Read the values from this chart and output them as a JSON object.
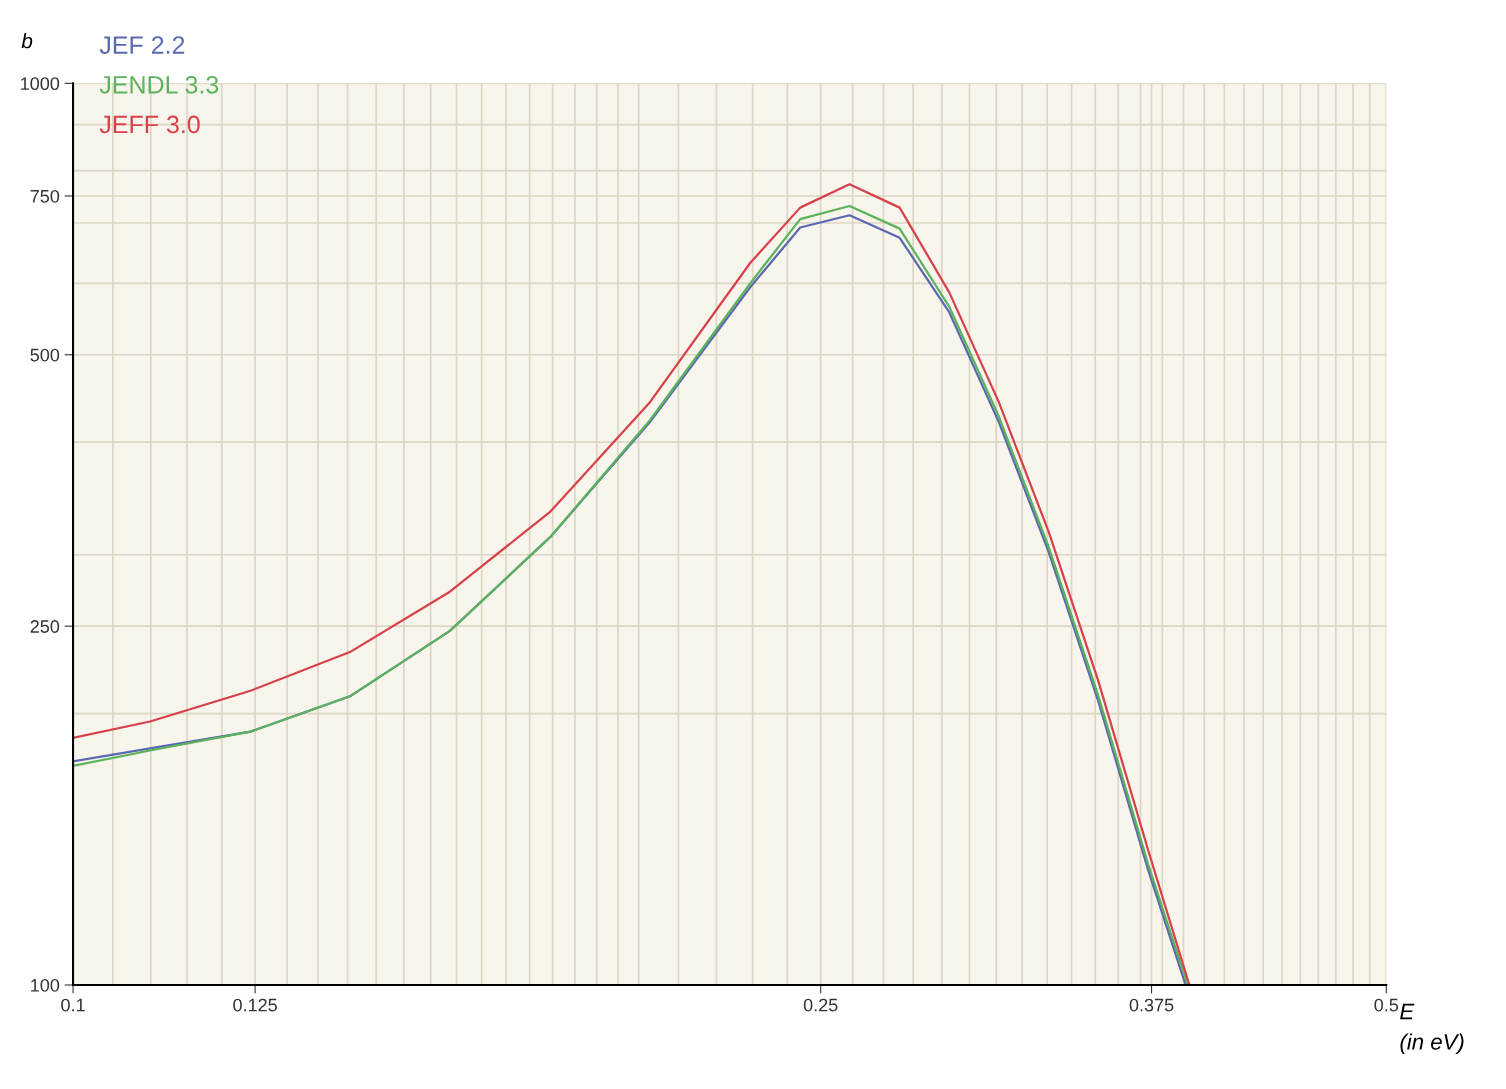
{
  "chart_data": {
    "type": "line",
    "ylabel": "b",
    "xlabel": "E\n(in eV)",
    "log": "xy",
    "grid": true,
    "legend": "top left",
    "line_style": "solid",
    "marker": "none",
    "xlim": [
      0.1,
      0.5
    ],
    "ylim": [
      100,
      1000
    ],
    "xticks": [
      0.1,
      {
        "value": 0.105,
        "label": null
      },
      {
        "value": 0.11,
        "label": null
      },
      {
        "value": 0.115,
        "label": null
      },
      {
        "value": 0.12,
        "label": null
      },
      0.125,
      {
        "value": 0.13,
        "label": null
      },
      {
        "value": 0.135,
        "label": null
      },
      {
        "value": 0.14,
        "label": null
      },
      {
        "value": 0.145,
        "label": null
      },
      {
        "value": 0.15,
        "label": null
      },
      {
        "value": 0.155,
        "label": null
      },
      {
        "value": 0.16,
        "label": null
      },
      {
        "value": 0.165,
        "label": null
      },
      {
        "value": 0.17,
        "label": null
      },
      {
        "value": 0.175,
        "label": null
      },
      {
        "value": 0.18,
        "label": null
      },
      {
        "value": 0.185,
        "label": null
      },
      {
        "value": 0.19,
        "label": null
      },
      {
        "value": 0.195,
        "label": null
      },
      {
        "value": 0.2,
        "label": null
      },
      {
        "value": 0.21,
        "label": null
      },
      {
        "value": 0.22,
        "label": null
      },
      {
        "value": 0.23,
        "label": null
      },
      {
        "value": 0.24,
        "label": null
      },
      0.25,
      {
        "value": 0.26,
        "label": null
      },
      {
        "value": 0.27,
        "label": null
      },
      {
        "value": 0.28,
        "label": null
      },
      {
        "value": 0.29,
        "label": null
      },
      {
        "value": 0.3,
        "label": null
      },
      {
        "value": 0.31,
        "label": null
      },
      {
        "value": 0.32,
        "label": null
      },
      {
        "value": 0.33,
        "label": null
      },
      {
        "value": 0.34,
        "label": null
      },
      {
        "value": 0.35,
        "label": null
      },
      {
        "value": 0.36,
        "label": null
      },
      {
        "value": 0.37,
        "label": null
      },
      0.375,
      {
        "value": 0.38,
        "label": null
      },
      {
        "value": 0.39,
        "label": null
      },
      {
        "value": 0.4,
        "label": null
      },
      {
        "value": 0.41,
        "label": null
      },
      {
        "value": 0.42,
        "label": null
      },
      {
        "value": 0.43,
        "label": null
      },
      {
        "value": 0.44,
        "label": null
      },
      {
        "value": 0.45,
        "label": null
      },
      {
        "value": 0.46,
        "label": null
      },
      {
        "value": 0.47,
        "label": null
      },
      {
        "value": 0.48,
        "label": null
      },
      {
        "value": 0.49,
        "label": null
      },
      0.5
    ],
    "yticks": [
      100,
      {
        "value": 200,
        "label": null
      },
      250,
      {
        "value": 300,
        "label": null
      },
      {
        "value": 400,
        "label": null
      },
      500,
      {
        "value": 600,
        "label": null
      },
      {
        "value": 700,
        "label": null
      },
      750,
      {
        "value": 800,
        "label": null
      },
      {
        "value": 900,
        "label": null
      },
      1000
    ],
    "series": [
      {
        "name": "JEF 2.2",
        "color": "#5a68b0",
        "x": [
          0.1,
          0.1099,
          0.1243,
          0.1404,
          0.1587,
          0.1795,
          0.2028,
          0.2293,
          0.2438,
          0.259,
          0.2754,
          0.2927,
          0.311,
          0.3306,
          0.3514,
          0.3735,
          0.391
        ],
        "values": [
          177,
          183,
          191,
          209,
          247,
          314,
          421,
          594,
          692,
          714,
          674,
          557,
          421,
          302,
          206,
          134,
          100
        ]
      },
      {
        "name": "JENDL 3.3",
        "color": "#5cb35c",
        "x": [
          0.1,
          0.1099,
          0.1243,
          0.1404,
          0.1587,
          0.1795,
          0.2028,
          0.2293,
          0.2438,
          0.259,
          0.2754,
          0.2927,
          0.311,
          0.3306,
          0.3514,
          0.3735,
          0.392
        ],
        "values": [
          175,
          182,
          191,
          209,
          247,
          314,
          423,
          600,
          707,
          731,
          690,
          565,
          427,
          306,
          209,
          136,
          100
        ]
      },
      {
        "name": "JEFF 3.0",
        "color": "#d8404a",
        "x": [
          0.1,
          0.1099,
          0.1243,
          0.1404,
          0.1587,
          0.1795,
          0.2028,
          0.2293,
          0.2438,
          0.259,
          0.2754,
          0.2927,
          0.311,
          0.3306,
          0.3514,
          0.3735,
          0.3928
        ],
        "values": [
          188,
          196,
          212,
          234,
          273,
          335,
          443,
          632,
          728,
          773,
          728,
          586,
          443,
          318,
          217,
          141,
          100
        ]
      }
    ]
  }
}
